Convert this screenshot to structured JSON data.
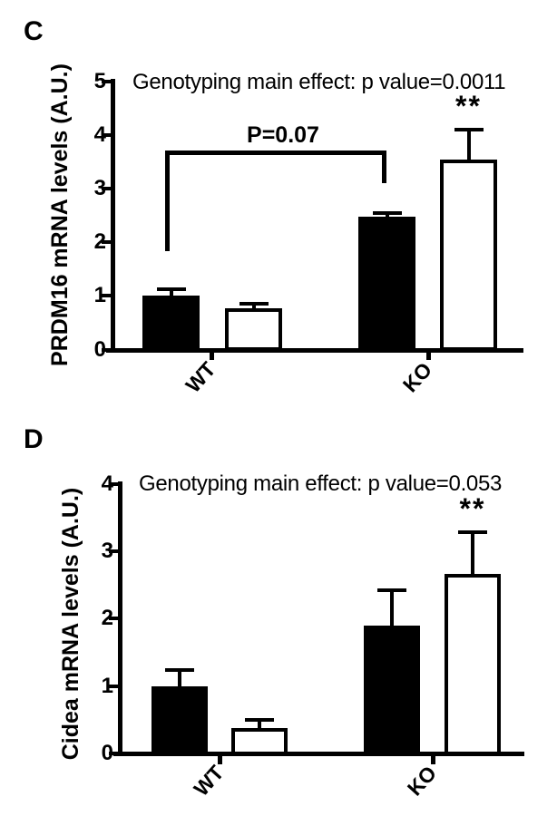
{
  "figure": {
    "background": "#ffffff",
    "ink_color": "#000000"
  },
  "chart_data": [
    {
      "type": "bar",
      "panel": "C",
      "title": "Genotyping main effect: p value=0.0011",
      "ylabel": "PRDM16 mRNA levels (A.U.)",
      "xlabel": "",
      "ylim": [
        0,
        5
      ],
      "yticks": [
        0,
        1,
        2,
        3,
        4,
        5
      ],
      "categories": [
        "WT",
        "KO"
      ],
      "grid": false,
      "legend": "none",
      "error_bars": "upper SEM only, capped",
      "series": [
        {
          "name": "filled-black-bars",
          "fill": "#000000",
          "stroke": "#000000",
          "values": [
            1.0,
            2.48
          ],
          "errors_up": [
            0.13,
            0.07
          ]
        },
        {
          "name": "open-white-bars",
          "fill": "#ffffff",
          "stroke": "#000000",
          "values": [
            0.77,
            3.54
          ],
          "errors_up": [
            0.09,
            0.56
          ]
        }
      ],
      "annotations": [
        {
          "type": "bracket",
          "text": "P=0.07",
          "from": "WT filled-black bar",
          "to": "KO filled-black bar"
        },
        {
          "type": "significance",
          "text": "**",
          "series": "open-white-bars",
          "category": "KO"
        }
      ]
    },
    {
      "type": "bar",
      "panel": "D",
      "title": "Genotyping main effect: p value=0.053",
      "ylabel": "Cidea mRNA levels (A.U.)",
      "xlabel": "",
      "ylim": [
        0,
        4
      ],
      "yticks": [
        0,
        1,
        2,
        3,
        4
      ],
      "categories": [
        "WT",
        "KO"
      ],
      "grid": false,
      "legend": "none",
      "error_bars": "upper SEM only, capped",
      "series": [
        {
          "name": "filled-black-bars",
          "fill": "#000000",
          "stroke": "#000000",
          "values": [
            1.0,
            1.9
          ],
          "errors_up": [
            0.24,
            0.52
          ]
        },
        {
          "name": "open-white-bars",
          "fill": "#ffffff",
          "stroke": "#000000",
          "values": [
            0.38,
            2.66
          ],
          "errors_up": [
            0.12,
            0.62
          ]
        }
      ],
      "annotations": [
        {
          "type": "significance",
          "text": "**",
          "series": "open-white-bars",
          "category": "KO"
        }
      ]
    }
  ]
}
